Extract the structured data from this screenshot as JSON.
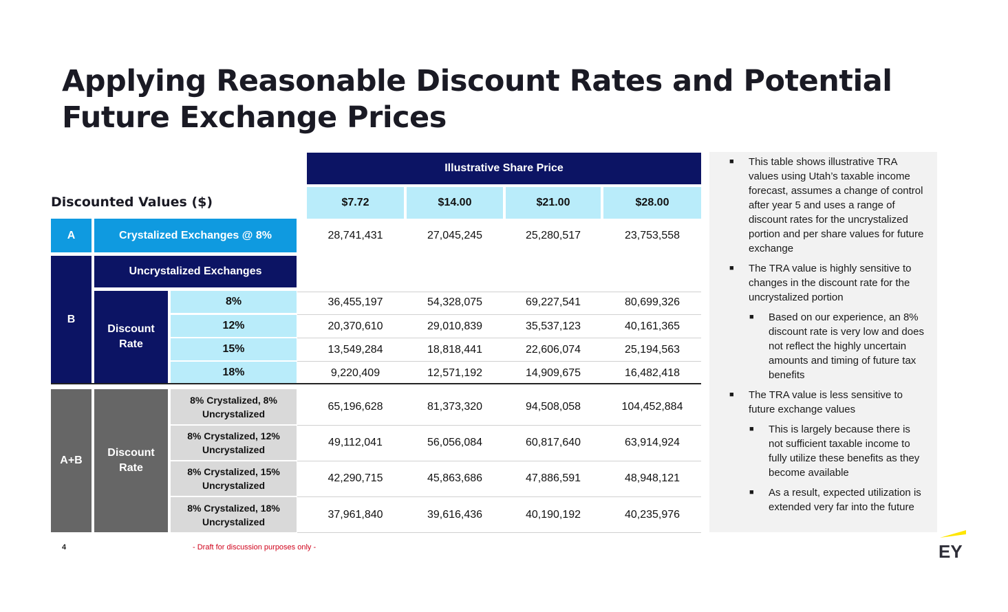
{
  "title": "Applying Reasonable Discount Rates and Potential Future Exchange Prices",
  "subhead": "Discounted Values ($)",
  "table": {
    "share_price_header": "Illustrative Share Price",
    "prices": [
      "$7.72",
      "$14.00",
      "$21.00",
      "$28.00"
    ],
    "row_a": {
      "tag": "A",
      "label": "Crystalized Exchanges @ 8%",
      "values": [
        "28,741,431",
        "27,045,245",
        "25,280,517",
        "23,753,558"
      ]
    },
    "group_b": {
      "tag": "B",
      "header": "Uncrystalized Exchanges",
      "rate_label": "Discount Rate",
      "rows": [
        {
          "rate": "8%",
          "values": [
            "36,455,197",
            "54,328,075",
            "69,227,541",
            "80,699,326"
          ]
        },
        {
          "rate": "12%",
          "values": [
            "20,370,610",
            "29,010,839",
            "35,537,123",
            "40,161,365"
          ]
        },
        {
          "rate": "15%",
          "values": [
            "13,549,284",
            "18,818,441",
            "22,606,074",
            "25,194,563"
          ]
        },
        {
          "rate": "18%",
          "values": [
            "9,220,409",
            "12,571,192",
            "14,909,675",
            "16,482,418"
          ]
        }
      ]
    },
    "group_ab": {
      "tag": "A+B",
      "rate_label": "Discount Rate",
      "rows": [
        {
          "line1": "8% Crystalized, 8%",
          "line2": "Uncrystalized",
          "values": [
            "65,196,628",
            "81,373,320",
            "94,508,058",
            "104,452,884"
          ]
        },
        {
          "line1": "8% Crystalized, 12%",
          "line2": "Uncrystalized",
          "values": [
            "49,112,041",
            "56,056,084",
            "60,817,640",
            "63,914,924"
          ]
        },
        {
          "line1": "8% Crystalized, 15%",
          "line2": "Uncrystalized",
          "values": [
            "42,290,715",
            "45,863,686",
            "47,886,591",
            "48,948,121"
          ]
        },
        {
          "line1": "8% Crystalized, 18%",
          "line2": "Uncrystalized",
          "values": [
            "37,961,840",
            "39,616,436",
            "40,190,192",
            "40,235,976"
          ]
        }
      ]
    }
  },
  "notes": [
    {
      "level": 1,
      "text": "This table shows illustrative TRA values using Utah’s taxable income forecast, assumes a change of control after year 5 and uses a range of discount rates for the uncrystalized portion and per share values for future exchange"
    },
    {
      "level": 1,
      "text": "The TRA value is highly sensitive to changes in the discount rate for the uncrystalized portion"
    },
    {
      "level": 2,
      "text": "Based on our experience, an 8% discount rate is very low and does not reflect the highly uncertain amounts and timing of future tax benefits"
    },
    {
      "level": 1,
      "text": "The TRA value is less sensitive to future exchange values"
    },
    {
      "level": 2,
      "text": "This is largely because there is not sufficient taxable income to fully utilize these benefits as they become available"
    },
    {
      "level": 2,
      "text": "As a result, expected utilization is extended very far into the future"
    }
  ],
  "footer": {
    "page_number": "4",
    "draft_note": "- Draft for discussion purposes only -"
  },
  "logo": {
    "text": "EY",
    "accent_color": "#ffe600"
  },
  "colors": {
    "navy": "#0c1464",
    "light_blue": "#b9ecfa",
    "bright_blue": "#0f9ae0",
    "dark_gray": "#666666",
    "light_gray": "#d9d9d9",
    "panel_gray": "#f2f2f2",
    "draft_red": "#d0021b"
  }
}
